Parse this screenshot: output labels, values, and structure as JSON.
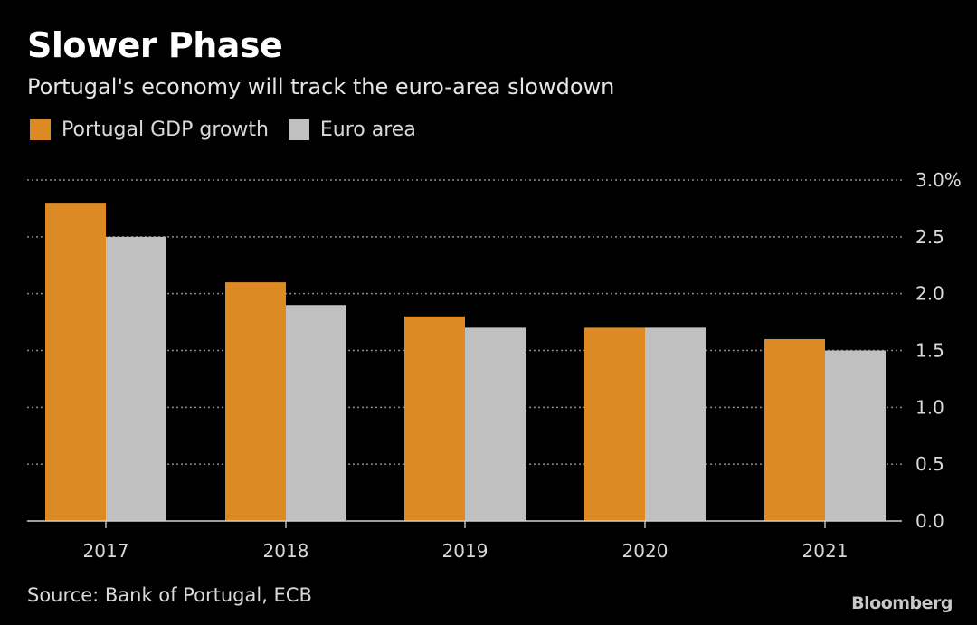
{
  "chart_data": {
    "type": "bar",
    "title": "Slower Phase",
    "subtitle": "Portugal's economy will track the euro-area slowdown",
    "categories": [
      "2017",
      "2018",
      "2019",
      "2020",
      "2021"
    ],
    "series": [
      {
        "name": "Portugal GDP growth",
        "values": [
          2.8,
          2.1,
          1.8,
          1.7,
          1.6
        ],
        "color": "#db8a24"
      },
      {
        "name": "Euro area",
        "values": [
          2.5,
          1.9,
          1.7,
          1.7,
          1.5
        ],
        "color": "#c0c0c0"
      }
    ],
    "ylim": [
      0,
      3.0
    ],
    "yticks": [
      "0.0",
      "0.5",
      "1.0",
      "1.5",
      "2.0",
      "2.5",
      "3.0%"
    ],
    "ytick_values": [
      0,
      0.5,
      1.0,
      1.5,
      2.0,
      2.5,
      3.0
    ],
    "grid": true,
    "legend_position": "top-left",
    "source": "Source: Bank of Portugal, ECB",
    "logo": "Bloomberg"
  }
}
